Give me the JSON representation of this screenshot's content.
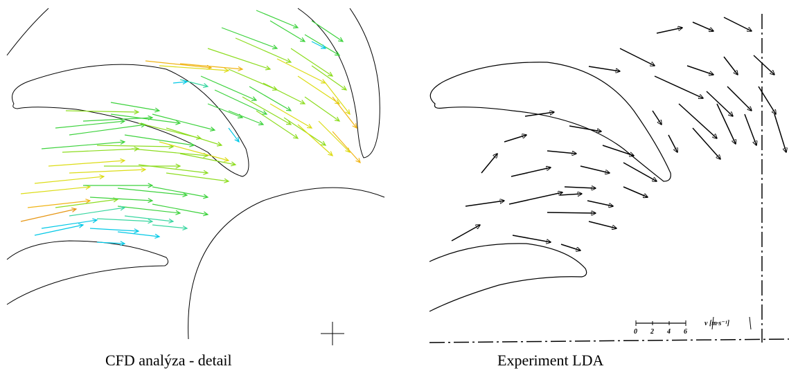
{
  "panels": {
    "left_caption": "CFD analýza - detail",
    "right_caption": "Experiment LDA"
  },
  "scale_bar": {
    "ticks": [
      "0",
      "2",
      "4",
      "6"
    ],
    "unit_label": "v [m·s⁻¹]"
  },
  "colors": {
    "outline": "#000000",
    "cfd_palette": [
      "#00c8e6",
      "#38d6a0",
      "#3cd23c",
      "#8cdc1e",
      "#dcdc14",
      "#f0b414",
      "#e69614"
    ],
    "experiment_arrow": "#000000"
  }
}
